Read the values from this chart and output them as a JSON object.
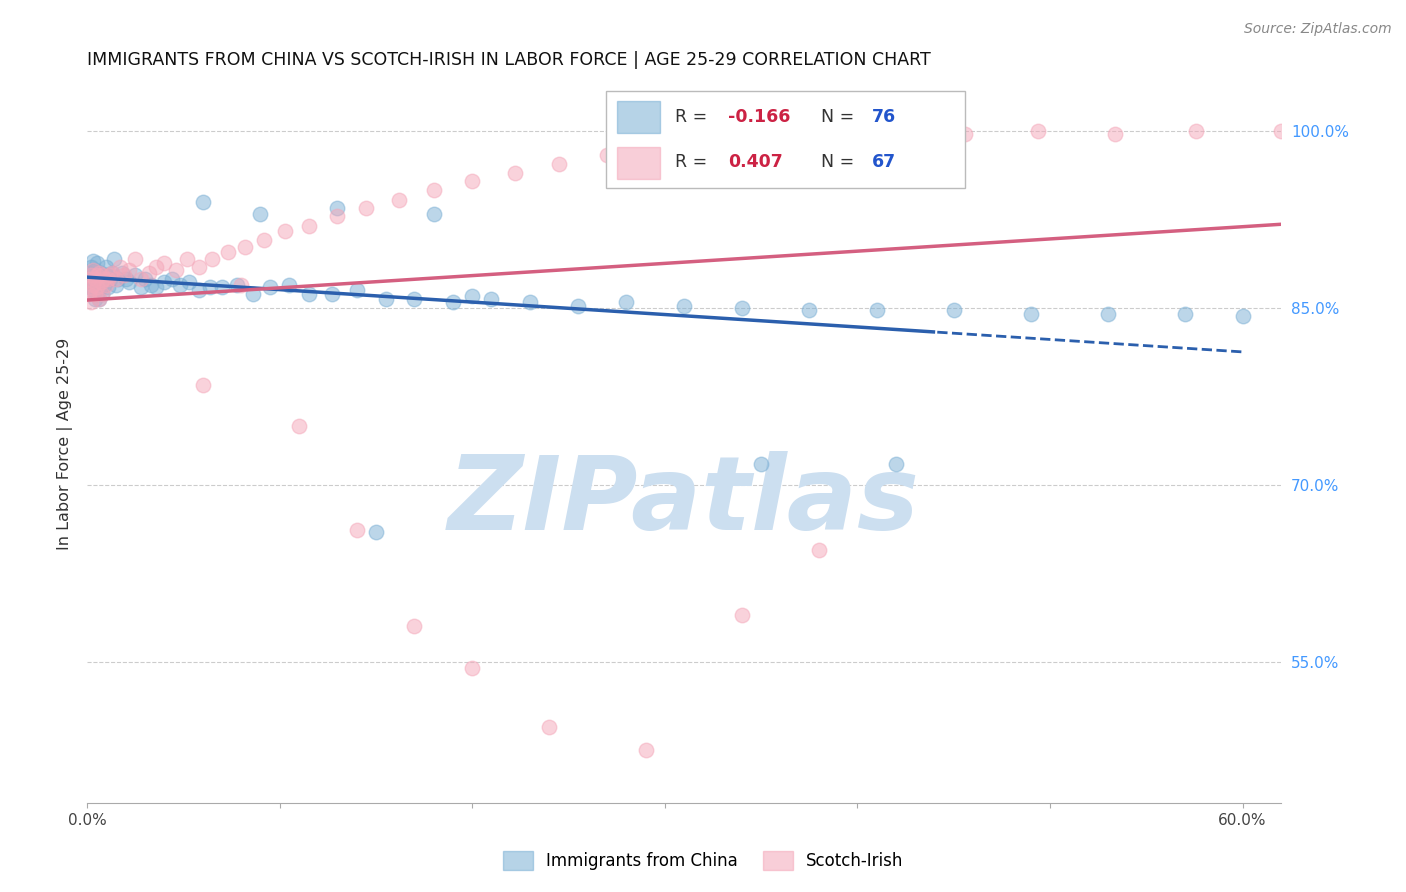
{
  "title": "IMMIGRANTS FROM CHINA VS SCOTCH-IRISH IN LABOR FORCE | AGE 25-29 CORRELATION CHART",
  "source": "Source: ZipAtlas.com",
  "ylabel": "In Labor Force | Age 25-29",
  "xlim": [
    0.0,
    0.62
  ],
  "ylim": [
    0.43,
    1.04
  ],
  "yticks": [
    0.55,
    0.7,
    0.85,
    1.0
  ],
  "ytick_labels": [
    "55.0%",
    "70.0%",
    "85.0%",
    "100.0%"
  ],
  "xtick_positions": [
    0.0,
    0.1,
    0.2,
    0.3,
    0.4,
    0.5,
    0.6
  ],
  "xtick_labels": [
    "0.0%",
    "",
    "",
    "",
    "",
    "",
    "60.0%"
  ],
  "legend_r_china": "-0.166",
  "legend_n_china": "76",
  "legend_r_scotch": "0.407",
  "legend_n_scotch": "67",
  "china_color": "#7bafd4",
  "scotch_color": "#f4a7b9",
  "china_line_color": "#2b5fad",
  "scotch_line_color": "#d45f80",
  "china_line_solid_end": 0.44,
  "watermark": "ZIPatlas",
  "watermark_color": "#ccdff0",
  "background_color": "#ffffff",
  "grid_color": "#cccccc",
  "right_tick_color": "#4499ff",
  "china_x": [
    0.001,
    0.001,
    0.002,
    0.002,
    0.002,
    0.003,
    0.003,
    0.003,
    0.004,
    0.004,
    0.004,
    0.005,
    0.005,
    0.005,
    0.006,
    0.006,
    0.007,
    0.007,
    0.008,
    0.008,
    0.009,
    0.009,
    0.01,
    0.01,
    0.011,
    0.012,
    0.013,
    0.014,
    0.015,
    0.016,
    0.018,
    0.02,
    0.022,
    0.025,
    0.028,
    0.03,
    0.033,
    0.036,
    0.04,
    0.044,
    0.048,
    0.053,
    0.058,
    0.064,
    0.07,
    0.078,
    0.086,
    0.095,
    0.105,
    0.115,
    0.127,
    0.14,
    0.155,
    0.17,
    0.19,
    0.21,
    0.23,
    0.255,
    0.28,
    0.31,
    0.34,
    0.375,
    0.41,
    0.45,
    0.49,
    0.53,
    0.57,
    0.6,
    0.18,
    0.09,
    0.13,
    0.06,
    0.2,
    0.15,
    0.35,
    0.42
  ],
  "china_y": [
    0.88,
    0.875,
    0.885,
    0.872,
    0.868,
    0.89,
    0.878,
    0.865,
    0.882,
    0.87,
    0.858,
    0.876,
    0.888,
    0.862,
    0.875,
    0.858,
    0.88,
    0.868,
    0.876,
    0.862,
    0.875,
    0.87,
    0.878,
    0.885,
    0.868,
    0.875,
    0.88,
    0.892,
    0.87,
    0.875,
    0.88,
    0.875,
    0.872,
    0.878,
    0.868,
    0.875,
    0.87,
    0.868,
    0.872,
    0.875,
    0.87,
    0.872,
    0.865,
    0.868,
    0.868,
    0.87,
    0.862,
    0.868,
    0.87,
    0.862,
    0.862,
    0.865,
    0.858,
    0.858,
    0.855,
    0.858,
    0.855,
    0.852,
    0.855,
    0.852,
    0.85,
    0.848,
    0.848,
    0.848,
    0.845,
    0.845,
    0.845,
    0.843,
    0.93,
    0.93,
    0.935,
    0.94,
    0.86,
    0.66,
    0.718,
    0.718
  ],
  "scotch_x": [
    0.001,
    0.001,
    0.002,
    0.002,
    0.002,
    0.003,
    0.003,
    0.004,
    0.004,
    0.005,
    0.005,
    0.006,
    0.006,
    0.007,
    0.008,
    0.008,
    0.009,
    0.01,
    0.011,
    0.012,
    0.013,
    0.015,
    0.017,
    0.019,
    0.022,
    0.025,
    0.028,
    0.032,
    0.036,
    0.04,
    0.046,
    0.052,
    0.058,
    0.065,
    0.073,
    0.082,
    0.092,
    0.103,
    0.115,
    0.13,
    0.145,
    0.162,
    0.18,
    0.2,
    0.222,
    0.245,
    0.27,
    0.296,
    0.324,
    0.354,
    0.386,
    0.42,
    0.456,
    0.494,
    0.534,
    0.576,
    0.62,
    0.06,
    0.08,
    0.11,
    0.14,
    0.17,
    0.2,
    0.24,
    0.29,
    0.34,
    0.38
  ],
  "scotch_y": [
    0.875,
    0.862,
    0.878,
    0.868,
    0.855,
    0.882,
    0.87,
    0.875,
    0.862,
    0.878,
    0.868,
    0.88,
    0.858,
    0.872,
    0.878,
    0.862,
    0.875,
    0.87,
    0.875,
    0.878,
    0.88,
    0.875,
    0.885,
    0.878,
    0.882,
    0.892,
    0.875,
    0.88,
    0.885,
    0.888,
    0.882,
    0.892,
    0.885,
    0.892,
    0.898,
    0.902,
    0.908,
    0.915,
    0.92,
    0.928,
    0.935,
    0.942,
    0.95,
    0.958,
    0.965,
    0.972,
    0.98,
    0.988,
    0.995,
    1.0,
    1.002,
    1.005,
    0.998,
    1.0,
    0.998,
    1.0,
    1.0,
    0.785,
    0.87,
    0.75,
    0.662,
    0.58,
    0.545,
    0.495,
    0.475,
    0.59,
    0.645
  ]
}
